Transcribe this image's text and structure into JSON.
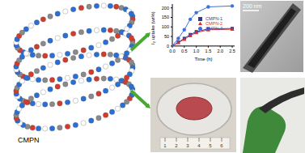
{
  "chart_data": {
    "type": "line",
    "x": [
      0,
      0.25,
      0.5,
      0.75,
      1.0,
      1.5,
      2.5
    ],
    "xlabel": "Time (h)",
    "ylabel": "I₂ uptake (wt%)",
    "xlim": [
      0,
      2.6
    ],
    "xticks": [
      {
        "value": 0,
        "label": "0.0"
      },
      0.5,
      {
        "value": 1,
        "label": "1.0"
      },
      1.5,
      {
        "value": 2,
        "label": "2.0"
      },
      2.5
    ],
    "ylim": [
      0,
      220
    ],
    "yticks": [
      0,
      50,
      100,
      150,
      200
    ],
    "legend": "center",
    "series": [
      {
        "name": "CMPN-1",
        "color": "#2b3d9c",
        "marker": "square",
        "values": [
          0,
          20,
          40,
          60,
          75,
          90,
          92
        ]
      },
      {
        "name": "CMPN-2",
        "color": "#e0322c",
        "marker": "triangle",
        "values": [
          0,
          18,
          35,
          55,
          70,
          85,
          88
        ]
      },
      {
        "name": "CMPN-3",
        "color": "#3d6fe0",
        "marker": "circle",
        "values": [
          0,
          40,
          85,
          140,
          175,
          205,
          210
        ]
      }
    ]
  },
  "figure": {
    "material_label": "CMPN",
    "tem_scale": "200 nm",
    "ruler": [
      "1",
      "2",
      "3",
      "4",
      "5",
      "6"
    ]
  }
}
